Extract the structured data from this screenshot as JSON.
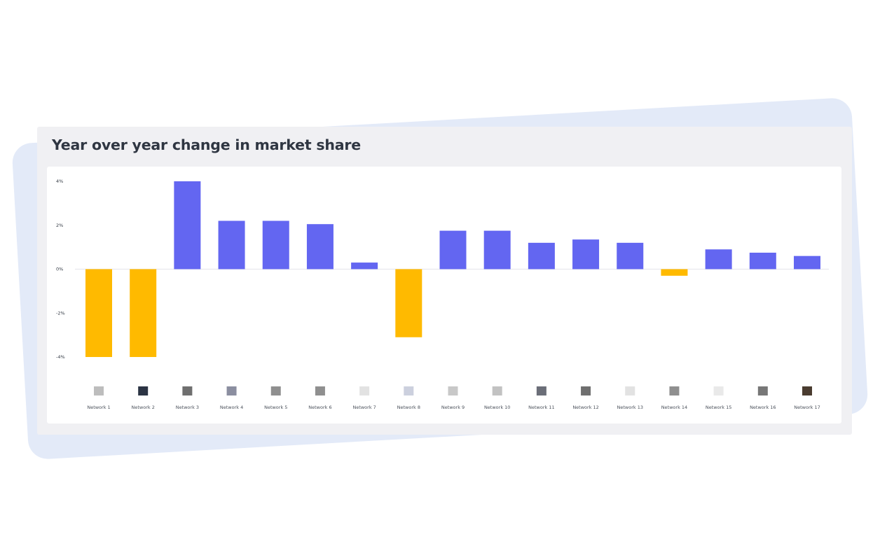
{
  "card": {
    "title": "Year over year change in market share"
  },
  "chart_data": {
    "type": "bar",
    "title": "Year over year change in market share",
    "xlabel": "",
    "ylabel": "",
    "ylim": [
      -4,
      4
    ],
    "yticks": [
      4,
      2,
      0,
      -2,
      -4
    ],
    "ytick_labels": [
      "4%",
      "2%",
      "0%",
      "-2%",
      "-4%"
    ],
    "grid": false,
    "legend_position": "bottom",
    "colors": {
      "positive": "#6366f1",
      "negative": "#ffba00"
    },
    "categories": [
      "Network 1",
      "Network 2",
      "Network 3",
      "Network 4",
      "Network 5",
      "Network 6",
      "Network 7",
      "Network 8",
      "Network 9",
      "Network 10",
      "Network 11",
      "Network 12",
      "Network 13",
      "Network 14",
      "Network 15",
      "Network 16",
      "Network 17"
    ],
    "values": [
      -4.0,
      -4.0,
      4.0,
      2.2,
      2.2,
      2.05,
      0.3,
      -3.1,
      1.75,
      1.75,
      1.2,
      1.35,
      1.2,
      -0.3,
      0.9,
      0.75,
      0.6
    ],
    "legend_swatch_colors": [
      "#bdbdbd",
      "#2b3444",
      "#6f6f6f",
      "#8b8ea0",
      "#8f8f8f",
      "#8f8f8f",
      "#e2e2e2",
      "#ccd0de",
      "#c8c8c8",
      "#c2c2c2",
      "#6b6e78",
      "#6f6f6f",
      "#e2e2e2",
      "#8f8f8f",
      "#e9e9e9",
      "#777777",
      "#4a3c30"
    ]
  }
}
